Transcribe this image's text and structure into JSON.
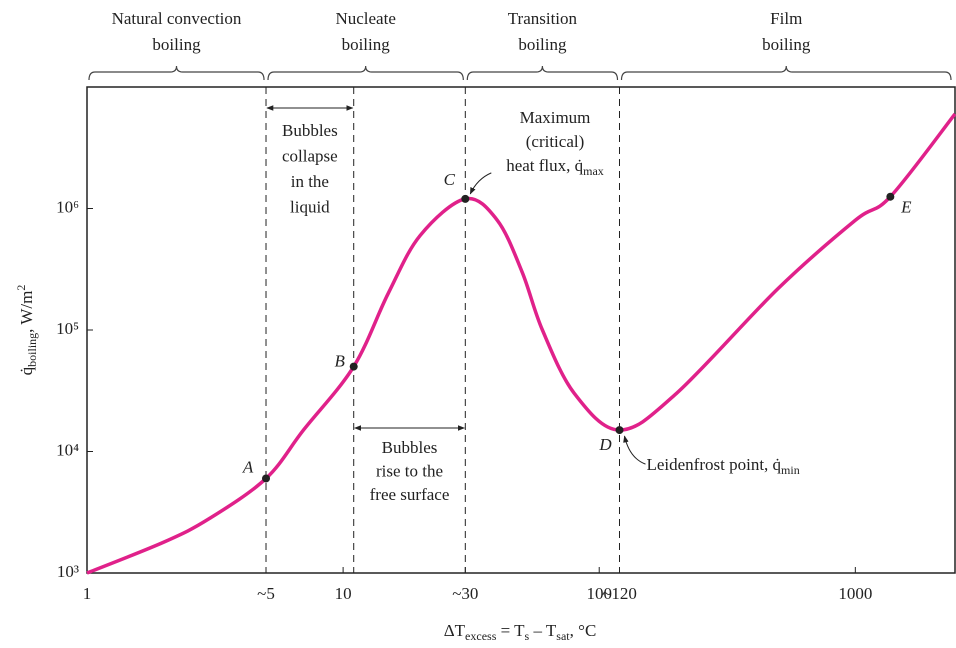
{
  "chart_data": {
    "type": "line",
    "xscale": "log",
    "yscale": "log",
    "xlim": [
      1,
      2450
    ],
    "ylim": [
      1000,
      10000000
    ],
    "xticks": [
      1,
      {
        "value": 5,
        "label": "~5"
      },
      10,
      {
        "value": 30,
        "label": "~30"
      },
      100,
      {
        "value": 120,
        "label": "~120"
      },
      1000
    ],
    "yticks": [
      {
        "value": 1000,
        "label": "10³"
      },
      {
        "value": 10000,
        "label": "10⁴"
      },
      {
        "value": 100000,
        "label": "10⁵"
      },
      {
        "value": 1000000,
        "label": "10⁶"
      }
    ],
    "xlabel": [
      "ΔT",
      "excess",
      " = T",
      "s",
      " – T",
      "sat",
      ", °C"
    ],
    "ylabel": [
      "q̇",
      "boiling",
      ", W/m",
      "2"
    ],
    "series": [
      {
        "color": "#e0218a",
        "x": [
          1,
          2,
          3,
          5,
          7,
          11,
          15,
          20,
          30,
          40,
          50,
          60,
          80,
          120,
          200,
          500,
          1000,
          1370,
          2450
        ],
        "values": [
          1000,
          1800,
          2800,
          6000,
          15000,
          50000,
          200000,
          600000,
          1200000,
          800000,
          300000,
          100000,
          30000,
          15000,
          30000,
          220000,
          800000,
          1250000,
          6000000
        ]
      }
    ],
    "points": [
      {
        "label": "A",
        "x": 5,
        "y": 6000
      },
      {
        "label": "B",
        "x": 11,
        "y": 50000
      },
      {
        "label": "C",
        "x": 30,
        "y": 1200000
      },
      {
        "label": "D",
        "x": 120,
        "y": 15000
      },
      {
        "label": "E",
        "x": 1370,
        "y": 1250000
      }
    ],
    "regions": [
      {
        "lines": [
          "Natural convection",
          "boiling"
        ],
        "range": [
          1,
          5
        ]
      },
      {
        "lines": [
          "Nucleate",
          "boiling"
        ],
        "range": [
          5,
          30
        ]
      },
      {
        "lines": [
          "Transition",
          "boiling"
        ],
        "range": [
          30,
          120
        ]
      },
      {
        "lines": [
          "Film",
          "boiling"
        ],
        "range": [
          120,
          2450
        ]
      }
    ],
    "annotations": [
      {
        "lines": [
          "Bubbles",
          "collapse",
          "in the",
          "liquid"
        ],
        "range": [
          5,
          11
        ]
      },
      {
        "lines": [
          "Bubbles",
          "rise to the",
          "free surface"
        ],
        "range": [
          11,
          30
        ]
      },
      {
        "lines": [
          "Maximum",
          "(critical)",
          "heat flux, q̇"
        ],
        "subscript": "max"
      },
      {
        "lines": [
          "Leidenfrost point, q̇"
        ],
        "subscript": "min"
      }
    ]
  }
}
